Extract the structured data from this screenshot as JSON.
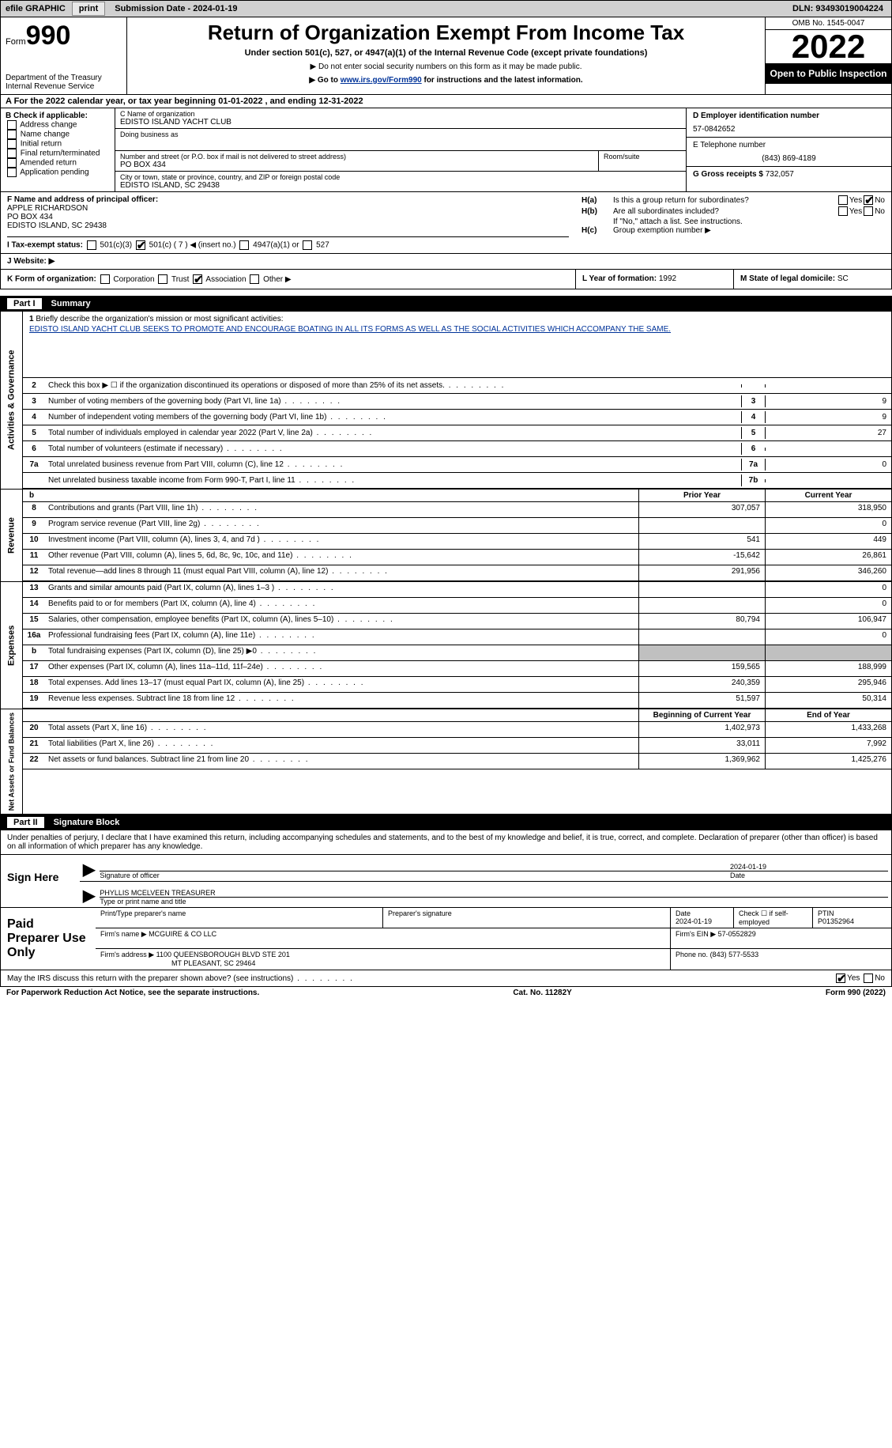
{
  "topbar": {
    "efile_label": "efile GRAPHIC",
    "print_btn": "print",
    "submission": "Submission Date - 2024-01-19",
    "dln": "DLN: 93493019004224"
  },
  "header": {
    "form_prefix": "Form",
    "form_number": "990",
    "dept": "Department of the Treasury",
    "irs": "Internal Revenue Service",
    "title": "Return of Organization Exempt From Income Tax",
    "sub1": "Under section 501(c), 527, or 4947(a)(1) of the Internal Revenue Code (except private foundations)",
    "sub2": "▶ Do not enter social security numbers on this form as it may be made public.",
    "sub3_pre": "▶ Go to ",
    "sub3_link": "www.irs.gov/Form990",
    "sub3_post": " for instructions and the latest information.",
    "omb": "OMB No. 1545-0047",
    "year": "2022",
    "open": "Open to Public Inspection"
  },
  "row_a": {
    "text": "A   For the 2022 calendar year, or tax year beginning 01-01-2022    , and ending 12-31-2022"
  },
  "col_b": {
    "header": "B Check if applicable:",
    "items": [
      "Address change",
      "Name change",
      "Initial return",
      "Final return/terminated",
      "Amended return",
      "Application pending"
    ]
  },
  "col_c": {
    "name_label": "C Name of organization",
    "name": "EDISTO ISLAND YACHT CLUB",
    "dba_label": "Doing business as",
    "dba": "",
    "addr_label": "Number and street (or P.O. box if mail is not delivered to street address)",
    "addr": "PO BOX 434",
    "room_label": "Room/suite",
    "city_label": "City or town, state or province, country, and ZIP or foreign postal code",
    "city": "EDISTO ISLAND, SC  29438"
  },
  "col_d": {
    "ein_label": "D Employer identification number",
    "ein": "57-0842652",
    "phone_label": "E Telephone number",
    "phone": "(843) 869-4189",
    "gross_label": "G Gross receipts $",
    "gross": "732,057"
  },
  "section_f": {
    "label": "F Name and address of principal officer:",
    "name": "APPLE RICHARDSON",
    "addr1": "PO BOX 434",
    "addr2": "EDISTO ISLAND, SC  29438"
  },
  "section_h": {
    "ha_label": "H(a)",
    "ha_text": "Is this a group return for subordinates?",
    "ha_no_checked": true,
    "hb_label": "H(b)",
    "hb_text": "Are all subordinates included?",
    "hb_note": "If \"No,\" attach a list. See instructions.",
    "hc_label": "H(c)",
    "hc_text": "Group exemption number ▶"
  },
  "row_i": {
    "label": "I   Tax-exempt status:",
    "opt1": "501(c)(3)",
    "opt2_pre": "501(c) ( ",
    "opt2_num": "7",
    "opt2_post": " ) ◀ (insert no.)",
    "opt2_checked": true,
    "opt3": "4947(a)(1) or",
    "opt4": "527"
  },
  "row_j": {
    "label": "J   Website: ▶",
    "val": ""
  },
  "row_k": {
    "label": "K Form of organization:",
    "opts": [
      "Corporation",
      "Trust",
      "Association",
      "Other ▶"
    ],
    "checked_idx": 2
  },
  "row_l": {
    "label": "L Year of formation:",
    "val": "1992"
  },
  "row_m": {
    "label": "M State of legal domicile:",
    "val": "SC"
  },
  "part1": {
    "num": "Part I",
    "title": "Summary"
  },
  "mission": {
    "num": "1",
    "label": "Briefly describe the organization's mission or most significant activities:",
    "text": "EDISTO ISLAND YACHT CLUB SEEKS TO PROMOTE AND ENCOURAGE BOATING IN ALL ITS FORMS AS WELL AS THE SOCIAL ACTIVITIES WHICH ACCOMPANY THE SAME."
  },
  "gov_rows": [
    {
      "num": "2",
      "desc": "Check this box ▶ ☐  if the organization discontinued its operations or disposed of more than 25% of its net assets.",
      "box": "",
      "val": ""
    },
    {
      "num": "3",
      "desc": "Number of voting members of the governing body (Part VI, line 1a)",
      "box": "3",
      "val": "9"
    },
    {
      "num": "4",
      "desc": "Number of independent voting members of the governing body (Part VI, line 1b)",
      "box": "4",
      "val": "9"
    },
    {
      "num": "5",
      "desc": "Total number of individuals employed in calendar year 2022 (Part V, line 2a)",
      "box": "5",
      "val": "27"
    },
    {
      "num": "6",
      "desc": "Total number of volunteers (estimate if necessary)",
      "box": "6",
      "val": ""
    },
    {
      "num": "7a",
      "desc": "Total unrelated business revenue from Part VIII, column (C), line 12",
      "box": "7a",
      "val": "0"
    },
    {
      "num": "",
      "desc": "Net unrelated business taxable income from Form 990-T, Part I, line 11",
      "box": "7b",
      "val": ""
    }
  ],
  "yr_header": {
    "b": "b",
    "prior": "Prior Year",
    "current": "Current Year"
  },
  "revenue_rows": [
    {
      "num": "8",
      "desc": "Contributions and grants (Part VIII, line 1h)",
      "py": "307,057",
      "cy": "318,950"
    },
    {
      "num": "9",
      "desc": "Program service revenue (Part VIII, line 2g)",
      "py": "",
      "cy": "0"
    },
    {
      "num": "10",
      "desc": "Investment income (Part VIII, column (A), lines 3, 4, and 7d )",
      "py": "541",
      "cy": "449"
    },
    {
      "num": "11",
      "desc": "Other revenue (Part VIII, column (A), lines 5, 6d, 8c, 9c, 10c, and 11e)",
      "py": "-15,642",
      "cy": "26,861"
    },
    {
      "num": "12",
      "desc": "Total revenue—add lines 8 through 11 (must equal Part VIII, column (A), line 12)",
      "py": "291,956",
      "cy": "346,260"
    }
  ],
  "expense_rows": [
    {
      "num": "13",
      "desc": "Grants and similar amounts paid (Part IX, column (A), lines 1–3 )",
      "py": "",
      "cy": "0"
    },
    {
      "num": "14",
      "desc": "Benefits paid to or for members (Part IX, column (A), line 4)",
      "py": "",
      "cy": "0"
    },
    {
      "num": "15",
      "desc": "Salaries, other compensation, employee benefits (Part IX, column (A), lines 5–10)",
      "py": "80,794",
      "cy": "106,947"
    },
    {
      "num": "16a",
      "desc": "Professional fundraising fees (Part IX, column (A), line 11e)",
      "py": "",
      "cy": "0"
    },
    {
      "num": "b",
      "desc": "Total fundraising expenses (Part IX, column (D), line 25) ▶0",
      "py": "SHADE",
      "cy": "SHADE"
    },
    {
      "num": "17",
      "desc": "Other expenses (Part IX, column (A), lines 11a–11d, 11f–24e)",
      "py": "159,565",
      "cy": "188,999"
    },
    {
      "num": "18",
      "desc": "Total expenses. Add lines 13–17 (must equal Part IX, column (A), line 25)",
      "py": "240,359",
      "cy": "295,946"
    },
    {
      "num": "19",
      "desc": "Revenue less expenses. Subtract line 18 from line 12",
      "py": "51,597",
      "cy": "50,314"
    }
  ],
  "na_header": {
    "begin": "Beginning of Current Year",
    "end": "End of Year"
  },
  "na_rows": [
    {
      "num": "20",
      "desc": "Total assets (Part X, line 16)",
      "py": "1,402,973",
      "cy": "1,433,268"
    },
    {
      "num": "21",
      "desc": "Total liabilities (Part X, line 26)",
      "py": "33,011",
      "cy": "7,992"
    },
    {
      "num": "22",
      "desc": "Net assets or fund balances. Subtract line 21 from line 20",
      "py": "1,369,962",
      "cy": "1,425,276"
    }
  ],
  "vtabs": {
    "gov": "Activities & Governance",
    "rev": "Revenue",
    "exp": "Expenses",
    "na": "Net Assets or Fund Balances"
  },
  "part2": {
    "num": "Part II",
    "title": "Signature Block"
  },
  "perjury": "Under penalties of perjury, I declare that I have examined this return, including accompanying schedules and statements, and to the best of my knowledge and belief, it is true, correct, and complete. Declaration of preparer (other than officer) is based on all information of which preparer has any knowledge.",
  "sign": {
    "label": "Sign Here",
    "sig_label": "Signature of officer",
    "date": "2024-01-19",
    "date_label": "Date",
    "name": "PHYLLIS MCELVEEN  TREASURER",
    "name_label": "Type or print name and title"
  },
  "preparer": {
    "label": "Paid Preparer Use Only",
    "col1": "Print/Type preparer's name",
    "col2": "Preparer's signature",
    "col3_label": "Date",
    "col3": "2024-01-19",
    "col4": "Check ☐ if self-employed",
    "col5_label": "PTIN",
    "col5": "P01352964",
    "firm_name_label": "Firm's name    ▶",
    "firm_name": "MCGUIRE & CO LLC",
    "firm_ein_label": "Firm's EIN ▶",
    "firm_ein": "57-0552829",
    "firm_addr_label": "Firm's address ▶",
    "firm_addr1": "1100 QUEENSBOROUGH BLVD STE 201",
    "firm_addr2": "MT PLEASANT, SC  29464",
    "phone_label": "Phone no.",
    "phone": "(843) 577-5533"
  },
  "discuss": {
    "text": "May the IRS discuss this return with the preparer shown above? (see instructions)",
    "yes_checked": true
  },
  "footer": {
    "left": "For Paperwork Reduction Act Notice, see the separate instructions.",
    "center": "Cat. No. 11282Y",
    "right": "Form 990 (2022)"
  }
}
